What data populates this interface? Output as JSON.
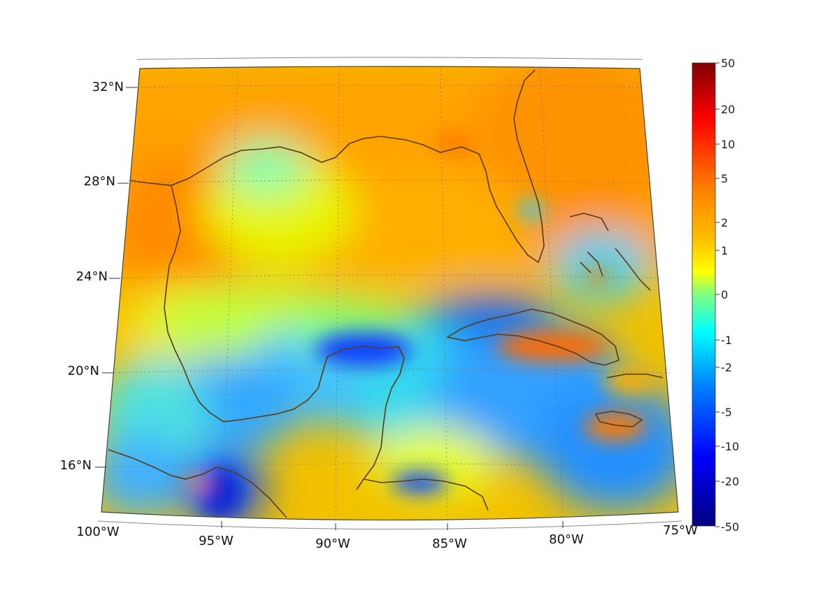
{
  "map": {
    "lat_labels": [
      "32°N",
      "28°N",
      "24°N",
      "20°N",
      "16°N"
    ],
    "lon_labels": [
      "100°W",
      "95°W",
      "90°W",
      "85°W",
      "80°W",
      "75°W"
    ],
    "extent": {
      "lon": [
        -100,
        -75
      ],
      "lat": [
        14,
        33
      ]
    },
    "region": "Gulf of Mexico and Caribbean",
    "coastline_color": "#5a3a14",
    "grid": true
  },
  "colorbar": {
    "tick_labels": [
      "50",
      "20",
      "10",
      "5",
      "2",
      "1",
      "0",
      "-1",
      "-2",
      "-5",
      "-10",
      "-20",
      "-50"
    ],
    "tick_values": [
      50,
      20,
      10,
      5,
      2,
      1,
      0,
      -1,
      -2,
      -5,
      -10,
      -20,
      -50
    ],
    "colormap": "jet",
    "colors": [
      "#7f0000",
      "#ff0000",
      "#ff7f00",
      "#ffff00",
      "#7fff7f",
      "#00ffff",
      "#007fff",
      "#0000ff",
      "#00007f"
    ]
  }
}
